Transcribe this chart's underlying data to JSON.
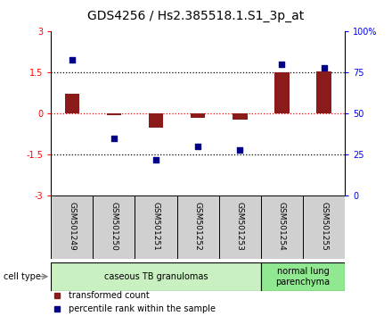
{
  "title": "GDS4256 / Hs2.385518.1.S1_3p_at",
  "samples": [
    "GSM501249",
    "GSM501250",
    "GSM501251",
    "GSM501252",
    "GSM501253",
    "GSM501254",
    "GSM501255"
  ],
  "red_values": [
    0.72,
    -0.05,
    -0.52,
    -0.15,
    -0.22,
    1.5,
    1.55
  ],
  "blue_values_pct": [
    83,
    35,
    22,
    30,
    28,
    80,
    78
  ],
  "ylim_left": [
    -3,
    3
  ],
  "yticks_left": [
    -3,
    -1.5,
    0,
    1.5,
    3
  ],
  "yticks_right": [
    0,
    25,
    50,
    75,
    100
  ],
  "ytick_labels_right": [
    "0",
    "25",
    "50",
    "75",
    "100%"
  ],
  "cell_type_groups": [
    {
      "label": "caseous TB granulomas",
      "indices": [
        0,
        1,
        2,
        3,
        4
      ],
      "color": "#c8f0c0"
    },
    {
      "label": "normal lung\nparenchyma",
      "indices": [
        5,
        6
      ],
      "color": "#90e890"
    }
  ],
  "bar_color": "#8B1A1A",
  "dot_color": "#00008B",
  "legend_items": [
    {
      "color": "#8B1A1A",
      "label": "transformed count"
    },
    {
      "color": "#00008B",
      "label": "percentile rank within the sample"
    }
  ],
  "bar_width": 0.35,
  "sample_box_color": "#d0d0d0",
  "cell_type_label": "cell type",
  "title_fontsize": 10,
  "tick_fontsize": 7,
  "sample_fontsize": 6.5,
  "legend_fontsize": 7,
  "celltype_fontsize": 7
}
